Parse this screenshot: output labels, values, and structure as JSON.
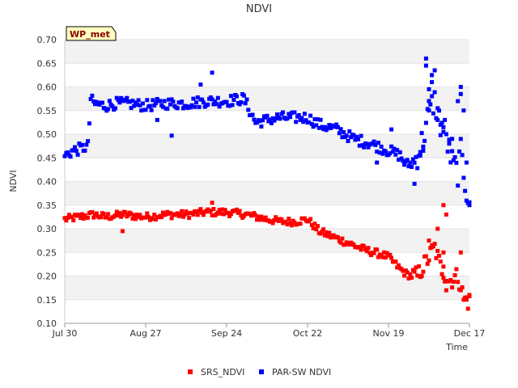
{
  "chart_data": {
    "type": "scatter",
    "title": "NDVI",
    "xlabel": "Time",
    "ylabel": "NDVI",
    "site_badge": "WP_met",
    "ylim": [
      0.1,
      0.7
    ],
    "yticks": [
      "0.10",
      "0.15",
      "0.20",
      "0.25",
      "0.30",
      "0.35",
      "0.40",
      "0.45",
      "0.50",
      "0.55",
      "0.60",
      "0.65",
      "0.70"
    ],
    "xlim_days": [
      0,
      140
    ],
    "xticks": [
      {
        "label": "Jul 30",
        "day": 0
      },
      {
        "label": "Aug 27",
        "day": 28
      },
      {
        "label": "Sep 24",
        "day": 56
      },
      {
        "label": "Oct 22",
        "day": 84
      },
      {
        "label": "Nov 19",
        "day": 112
      },
      {
        "label": "Dec 17",
        "day": 140
      }
    ],
    "series": [
      {
        "name": "SRS_NDVI",
        "color": "#ff0000",
        "trend": [
          [
            0,
            0.32
          ],
          [
            5,
            0.325
          ],
          [
            10,
            0.33
          ],
          [
            14,
            0.325
          ],
          [
            20,
            0.33
          ],
          [
            28,
            0.325
          ],
          [
            35,
            0.33
          ],
          [
            42,
            0.33
          ],
          [
            49,
            0.335
          ],
          [
            56,
            0.335
          ],
          [
            63,
            0.33
          ],
          [
            70,
            0.32
          ],
          [
            75,
            0.315
          ],
          [
            80,
            0.315
          ],
          [
            84,
            0.32
          ],
          [
            88,
            0.295
          ],
          [
            92,
            0.285
          ],
          [
            98,
            0.27
          ],
          [
            104,
            0.255
          ],
          [
            110,
            0.245
          ],
          [
            112,
            0.24
          ],
          [
            116,
            0.215
          ],
          [
            118,
            0.205
          ],
          [
            120,
            0.2
          ],
          [
            122,
            0.2
          ],
          [
            126,
            0.24
          ],
          [
            128,
            0.26
          ],
          [
            130,
            0.22
          ],
          [
            133,
            0.19
          ],
          [
            136,
            0.2
          ],
          [
            137,
            0.18
          ],
          [
            138,
            0.15
          ],
          [
            140,
            0.145
          ]
        ],
        "outliers": [
          [
            51,
            0.355
          ],
          [
            20,
            0.295
          ],
          [
            126,
            0.275
          ],
          [
            127,
            0.265
          ],
          [
            129,
            0.3
          ],
          [
            131,
            0.35
          ],
          [
            132,
            0.33
          ],
          [
            131,
            0.25
          ],
          [
            131,
            0.22
          ],
          [
            132,
            0.17
          ],
          [
            137,
            0.25
          ],
          [
            139,
            0.155
          ],
          [
            140,
            0.16
          ]
        ]
      },
      {
        "name": "PAR-SW NDVI",
        "color": "#0000ff",
        "trend": [
          [
            0,
            0.455
          ],
          [
            3,
            0.465
          ],
          [
            6,
            0.47
          ],
          [
            8,
            0.475
          ],
          [
            9,
            0.575
          ],
          [
            10,
            0.565
          ],
          [
            14,
            0.56
          ],
          [
            18,
            0.565
          ],
          [
            22,
            0.565
          ],
          [
            28,
            0.56
          ],
          [
            35,
            0.565
          ],
          [
            42,
            0.565
          ],
          [
            49,
            0.57
          ],
          [
            56,
            0.57
          ],
          [
            62,
            0.575
          ],
          [
            66,
            0.525
          ],
          [
            70,
            0.53
          ],
          [
            74,
            0.535
          ],
          [
            80,
            0.535
          ],
          [
            84,
            0.535
          ],
          [
            88,
            0.52
          ],
          [
            94,
            0.51
          ],
          [
            100,
            0.49
          ],
          [
            106,
            0.48
          ],
          [
            110,
            0.47
          ],
          [
            112,
            0.465
          ],
          [
            116,
            0.455
          ],
          [
            118,
            0.435
          ],
          [
            121,
            0.44
          ],
          [
            124,
            0.49
          ],
          [
            126,
            0.55
          ],
          [
            128,
            0.57
          ],
          [
            130,
            0.52
          ],
          [
            131,
            0.52
          ],
          [
            134,
            0.44
          ],
          [
            136,
            0.42
          ],
          [
            137,
            0.46
          ],
          [
            139,
            0.38
          ],
          [
            140,
            0.365
          ]
        ],
        "outliers": [
          [
            51,
            0.63
          ],
          [
            47,
            0.605
          ],
          [
            37,
            0.497
          ],
          [
            32,
            0.53
          ],
          [
            108,
            0.44
          ],
          [
            113,
            0.51
          ],
          [
            121,
            0.395
          ],
          [
            125,
            0.66
          ],
          [
            125,
            0.645
          ],
          [
            127,
            0.625
          ],
          [
            127,
            0.61
          ],
          [
            128,
            0.635
          ],
          [
            126,
            0.595
          ],
          [
            126,
            0.55
          ],
          [
            129,
            0.53
          ],
          [
            130,
            0.52
          ],
          [
            131,
            0.505
          ],
          [
            133,
            0.48
          ],
          [
            134,
            0.49
          ],
          [
            136,
            0.57
          ],
          [
            137,
            0.6
          ],
          [
            137,
            0.585
          ],
          [
            138,
            0.55
          ],
          [
            139,
            0.44
          ],
          [
            140,
            0.35
          ],
          [
            123,
            0.455
          ],
          [
            124,
            0.465
          ]
        ]
      }
    ]
  }
}
